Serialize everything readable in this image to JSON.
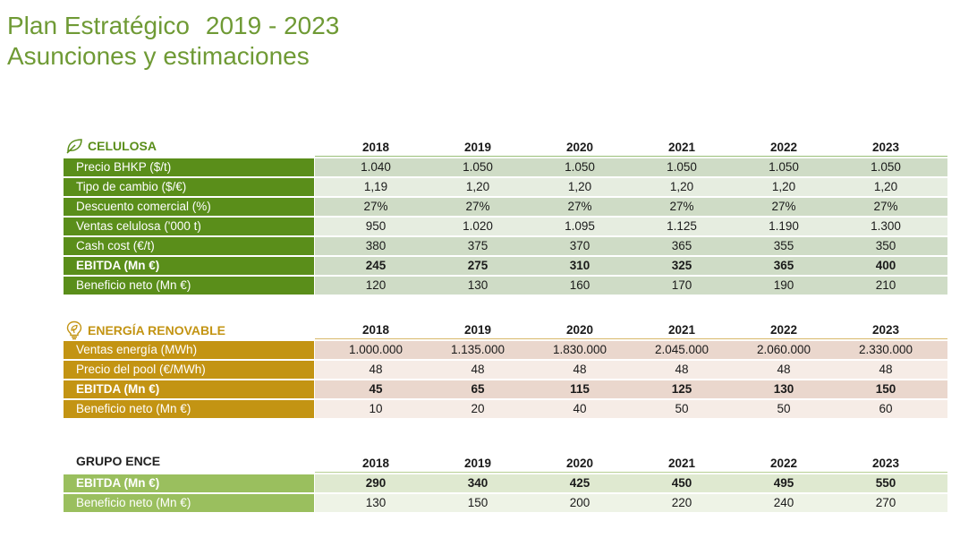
{
  "title": {
    "line1_a": "Plan Estratégico",
    "line1_b": "2019 - 2023",
    "line2": "Asunciones y estimaciones"
  },
  "colors": {
    "title": "#6f9a35",
    "celulosa_label": "#5a8e1a",
    "celulosa_title": "#5a8e1a",
    "celulosa_row_light": "#e6ede0",
    "celulosa_row_dark": "#cfdcc6",
    "energia_label": "#c39413",
    "energia_title": "#c39413",
    "energia_row_light": "#f6ece6",
    "energia_row_dark": "#ead7cd",
    "grupo_label": "#9abf5e",
    "grupo_row_light": "#eef3e6",
    "grupo_row_dark": "#dfe9d0"
  },
  "celulosa": {
    "title": "CELULOSA",
    "icon": "leaf-icon",
    "years": [
      "2018",
      "2019",
      "2020",
      "2021",
      "2022",
      "2023"
    ],
    "rows": [
      {
        "label": "Precio BHKP ($/t)",
        "values": [
          "1.040",
          "1.050",
          "1.050",
          "1.050",
          "1.050",
          "1.050"
        ],
        "bold": false
      },
      {
        "label": "Tipo de cambio ($/€)",
        "values": [
          "1,19",
          "1,20",
          "1,20",
          "1,20",
          "1,20",
          "1,20"
        ],
        "bold": false
      },
      {
        "label": "Descuento comercial (%)",
        "values": [
          "27%",
          "27%",
          "27%",
          "27%",
          "27%",
          "27%"
        ],
        "bold": false
      },
      {
        "label": "Ventas celulosa ('000 t)",
        "values": [
          "950",
          "1.020",
          "1.095",
          "1.125",
          "1.190",
          "1.300"
        ],
        "bold": false
      },
      {
        "label": "Cash cost (€/t)",
        "values": [
          "380",
          "375",
          "370",
          "365",
          "355",
          "350"
        ],
        "bold": false
      },
      {
        "label": "EBITDA (Mn €)",
        "values": [
          "245",
          "275",
          "310",
          "325",
          "365",
          "400"
        ],
        "bold": true
      },
      {
        "label": "Beneficio neto (Mn €)",
        "values": [
          "120",
          "130",
          "160",
          "170",
          "190",
          "210"
        ],
        "bold": false
      }
    ]
  },
  "energia": {
    "title": "ENERGÍA RENOVABLE",
    "icon": "lightbulb-leaf-icon",
    "years": [
      "2018",
      "2019",
      "2020",
      "2021",
      "2022",
      "2023"
    ],
    "rows": [
      {
        "label": "Ventas energía (MWh)",
        "values": [
          "1.000.000",
          "1.135.000",
          "1.830.000",
          "2.045.000",
          "2.060.000",
          "2.330.000"
        ],
        "bold": false
      },
      {
        "label": "Precio del pool (€/MWh)",
        "values": [
          "48",
          "48",
          "48",
          "48",
          "48",
          "48"
        ],
        "bold": false
      },
      {
        "label": "EBITDA (Mn €)",
        "values": [
          "45",
          "65",
          "115",
          "125",
          "130",
          "150"
        ],
        "bold": true
      },
      {
        "label": "Beneficio neto (Mn €)",
        "values": [
          "10",
          "20",
          "40",
          "50",
          "50",
          "60"
        ],
        "bold": false
      }
    ]
  },
  "grupo": {
    "title": "GRUPO ENCE",
    "years": [
      "2018",
      "2019",
      "2020",
      "2021",
      "2022",
      "2023"
    ],
    "rows": [
      {
        "label": "EBITDA (Mn €)",
        "values": [
          "290",
          "340",
          "425",
          "450",
          "495",
          "550"
        ],
        "bold": true
      },
      {
        "label": "Beneficio neto (Mn €)",
        "values": [
          "130",
          "150",
          "200",
          "220",
          "240",
          "270"
        ],
        "bold": false
      }
    ]
  }
}
